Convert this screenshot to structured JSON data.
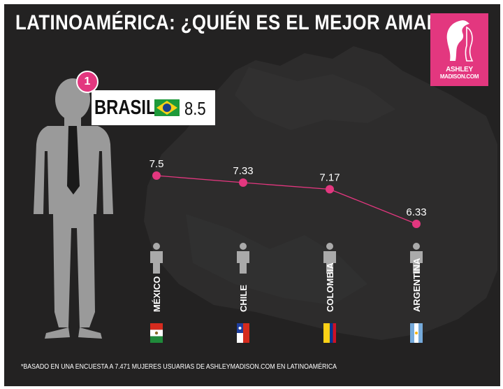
{
  "title": "LATINOAMÉRICA: ¿QUIÉN ES EL MEJOR AMANTE?*",
  "logo": {
    "line1": "ASHLEY",
    "line2": "MADISON.COM",
    "color": "#e3377f"
  },
  "winner": {
    "rank": "1",
    "country": "BRASIL",
    "score": "8.5",
    "flag": "brazil-flag"
  },
  "chart_data": {
    "type": "line",
    "categories": [
      "MÉXICO",
      "CHILE",
      "COLOMBIA",
      "ARGENTINA"
    ],
    "values": [
      7.5,
      7.33,
      7.17,
      6.33
    ],
    "value_labels": [
      "7.5",
      "7.33",
      "7.17",
      "6.33"
    ],
    "flags": [
      "mexico-flag",
      "chile-flag",
      "colombia-flag",
      "argentina-flag"
    ],
    "line_color": "#e3377f",
    "marker_color": "#e3377f",
    "grid": false,
    "legend": "none"
  },
  "footnote": "*BASADO EN UNA ENCUESTA A 7.471 MUJERES USUARIAS DE ASHLEYMADISON.COM EN LATINOAMÉRICA",
  "colors": {
    "background": "#232222",
    "map": "#2d2c2c",
    "silhouette": "#9a9a9a",
    "person_icon": "#aaaaaa",
    "accent": "#e3377f"
  }
}
